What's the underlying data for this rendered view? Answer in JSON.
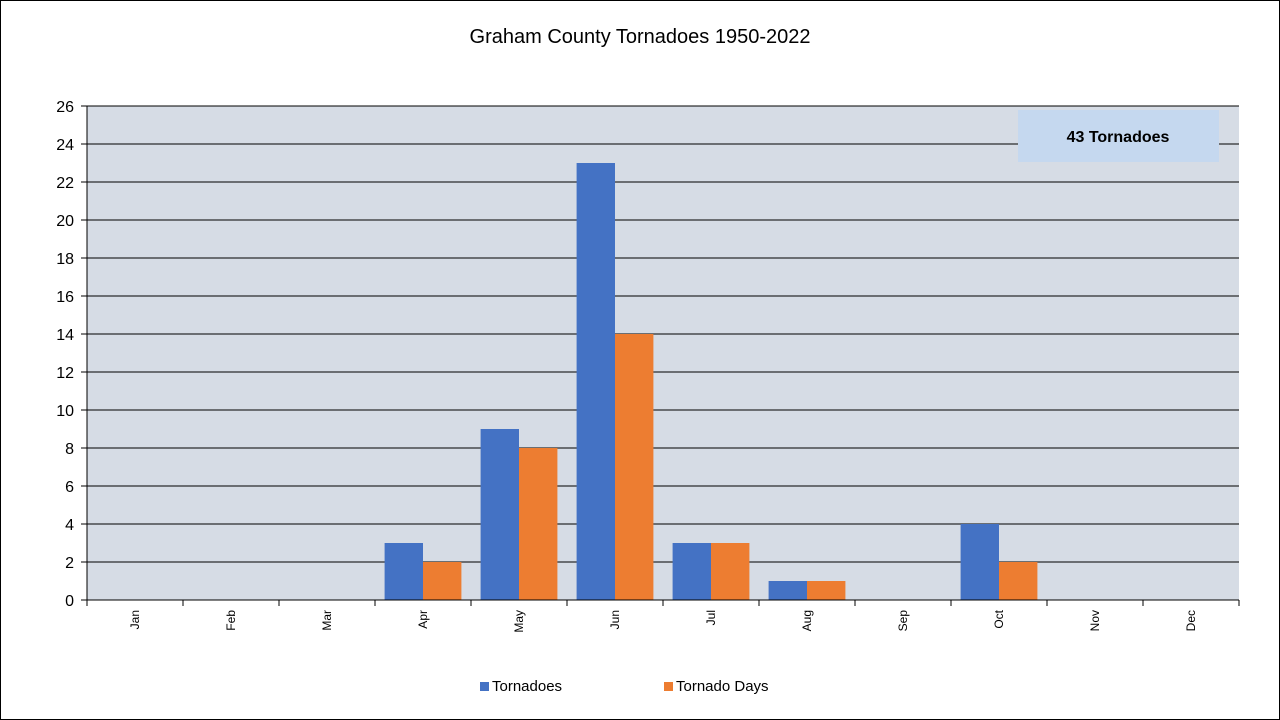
{
  "chart_data": {
    "type": "bar",
    "title": "Graham County Tornadoes 1950-2022",
    "categories": [
      "Jan",
      "Feb",
      "Mar",
      "Apr",
      "May",
      "Jun",
      "Jul",
      "Aug",
      "Sep",
      "Oct",
      "Nov",
      "Dec"
    ],
    "series": [
      {
        "name": "Tornadoes",
        "color": "#4472C4",
        "values": [
          0,
          0,
          0,
          3,
          9,
          23,
          3,
          1,
          0,
          4,
          0,
          0
        ]
      },
      {
        "name": "Tornado Days",
        "color": "#ED7D31",
        "values": [
          0,
          0,
          0,
          2,
          8,
          14,
          3,
          1,
          0,
          2,
          0,
          0
        ]
      }
    ],
    "ylim": [
      0,
      26
    ],
    "ytick_step": 2,
    "xlabel": "",
    "ylabel": "",
    "grid": true,
    "legend_position": "bottom",
    "plot_background": "#D6DCE5",
    "annotation": {
      "text": "43 Tornadoes",
      "background": "#C5D8EF",
      "position": "top-right"
    }
  }
}
